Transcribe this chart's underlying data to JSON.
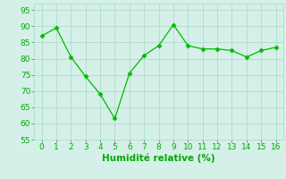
{
  "x": [
    0,
    1,
    2,
    3,
    4,
    5,
    6,
    7,
    8,
    9,
    10,
    11,
    12,
    13,
    14,
    15,
    16
  ],
  "y": [
    87,
    89.5,
    80.5,
    74.5,
    69,
    61.5,
    75.5,
    81,
    84,
    90.5,
    84,
    83,
    83,
    82.5,
    80.5,
    82.5,
    83.5
  ],
  "xlim": [
    -0.5,
    16.5
  ],
  "ylim": [
    55,
    97
  ],
  "yticks": [
    55,
    60,
    65,
    70,
    75,
    80,
    85,
    90,
    95
  ],
  "xticks": [
    0,
    1,
    2,
    3,
    4,
    5,
    6,
    7,
    8,
    9,
    10,
    11,
    12,
    13,
    14,
    15,
    16
  ],
  "xlabel": "Humidité relative (%)",
  "line_color": "#00bb00",
  "marker_color": "#00bb00",
  "bg_color": "#d4f0e8",
  "grid_color": "#a8d8c8",
  "tick_color": "#00aa00",
  "label_color": "#00aa00",
  "xlabel_fontsize": 7.5,
  "tick_fontsize": 6.5
}
